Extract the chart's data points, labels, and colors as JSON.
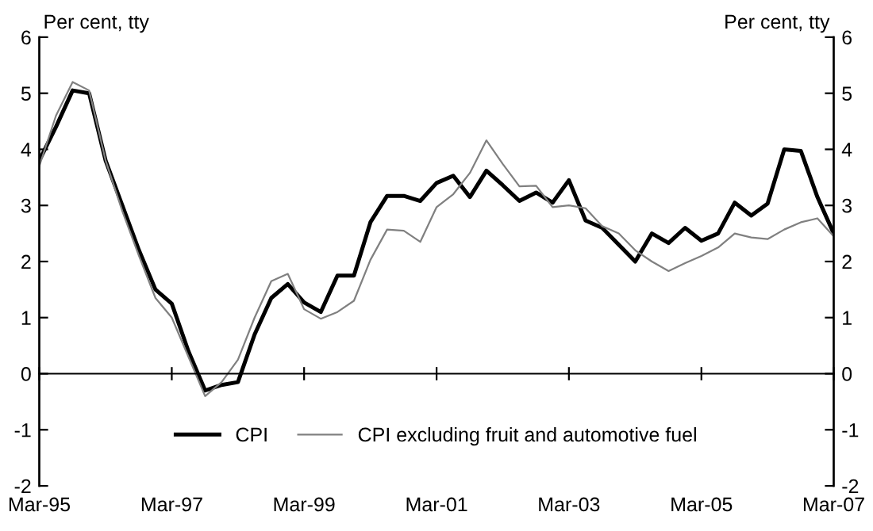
{
  "chart_data": {
    "type": "line",
    "x": [
      "1995-03",
      "1995-06",
      "1995-09",
      "1995-12",
      "1996-03",
      "1996-06",
      "1996-09",
      "1996-12",
      "1997-03",
      "1997-06",
      "1997-09",
      "1997-12",
      "1998-03",
      "1998-06",
      "1998-09",
      "1998-12",
      "1999-03",
      "1999-06",
      "1999-09",
      "1999-12",
      "2000-03",
      "2000-06",
      "2000-09",
      "2000-12",
      "2001-03",
      "2001-06",
      "2001-09",
      "2001-12",
      "2002-03",
      "2002-06",
      "2002-09",
      "2002-12",
      "2003-03",
      "2003-06",
      "2003-09",
      "2003-12",
      "2004-03",
      "2004-06",
      "2004-09",
      "2004-12",
      "2005-03",
      "2005-06",
      "2005-09",
      "2005-12",
      "2006-03",
      "2006-06",
      "2006-09",
      "2006-12",
      "2007-03"
    ],
    "series": [
      {
        "name": "CPI",
        "color": "#000000",
        "values": [
          3.8,
          4.4,
          5.05,
          5.0,
          3.8,
          3.0,
          2.2,
          1.5,
          1.25,
          0.4,
          -0.3,
          -0.2,
          -0.15,
          0.7,
          1.35,
          1.6,
          1.27,
          1.1,
          1.75,
          1.75,
          2.7,
          3.17,
          3.17,
          3.08,
          3.4,
          3.53,
          3.15,
          3.62,
          3.36,
          3.08,
          3.23,
          3.05,
          3.45,
          2.73,
          2.6,
          2.3,
          2.0,
          2.5,
          2.33,
          2.6,
          2.37,
          2.5,
          3.05,
          2.82,
          3.03,
          4.0,
          3.97,
          3.15,
          2.5
        ]
      },
      {
        "name": "CPI excluding fruit and automotive fuel",
        "color": "#808080",
        "values": [
          3.7,
          4.6,
          5.2,
          5.05,
          3.8,
          2.9,
          2.1,
          1.35,
          1.0,
          0.3,
          -0.4,
          -0.15,
          0.25,
          1.0,
          1.65,
          1.78,
          1.15,
          0.98,
          1.1,
          1.3,
          2.03,
          2.57,
          2.55,
          2.35,
          2.97,
          3.2,
          3.58,
          4.16,
          3.74,
          3.34,
          3.35,
          2.97,
          3.0,
          2.95,
          2.63,
          2.5,
          2.2,
          2.0,
          1.83,
          1.97,
          2.1,
          2.25,
          2.5,
          2.43,
          2.4,
          2.57,
          2.7,
          2.77,
          2.45
        ]
      }
    ],
    "xlim": [
      "1995-03",
      "2007-03"
    ],
    "xticks": [
      {
        "value": "1995-03",
        "label": "Mar-95"
      },
      {
        "value": "1997-03",
        "label": "Mar-97"
      },
      {
        "value": "1999-03",
        "label": "Mar-99"
      },
      {
        "value": "2001-03",
        "label": "Mar-01"
      },
      {
        "value": "2003-03",
        "label": "Mar-03"
      },
      {
        "value": "2005-03",
        "label": "Mar-05"
      },
      {
        "value": "2007-03",
        "label": "Mar-07"
      }
    ],
    "ylim": [
      -2,
      6
    ],
    "yticks": [
      -2,
      -1,
      0,
      1,
      2,
      3,
      4,
      5,
      6
    ],
    "y2lim": [
      -2,
      6
    ],
    "y2ticks": [
      -2,
      -1,
      0,
      1,
      2,
      3,
      4,
      5,
      6
    ],
    "ylabel": "Per cent, tty",
    "y2label": "Per cent, tty",
    "legend": "bottom",
    "marker": "none",
    "line_style": "solid"
  }
}
